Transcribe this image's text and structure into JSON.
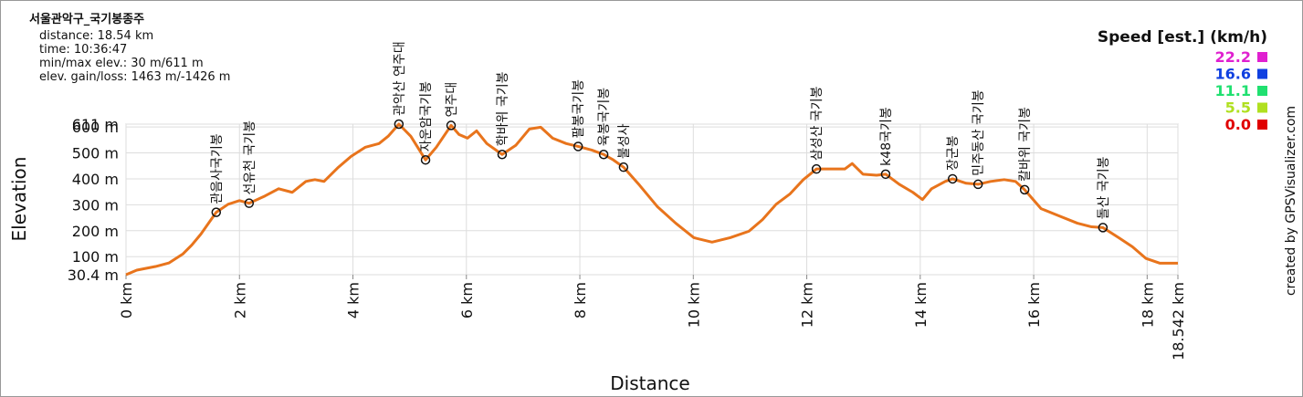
{
  "chart_data": {
    "type": "line",
    "title": "서울관악구_국기봉종주",
    "stats": [
      "distance: 18.54 km",
      "time: 10:36:47",
      "min/max elev.: 30 m/611 m",
      "elev. gain/loss: 1463 m/-1426 m"
    ],
    "x_label": "Distance",
    "y_label": "Elevation",
    "x": [
      0,
      0.19,
      0.52,
      0.76,
      1.0,
      1.16,
      1.32,
      1.59,
      1.8,
      2.0,
      2.17,
      2.45,
      2.69,
      2.93,
      3.17,
      3.33,
      3.49,
      3.73,
      3.97,
      4.22,
      4.46,
      4.62,
      4.81,
      5.02,
      5.28,
      5.47,
      5.73,
      5.87,
      6.02,
      6.18,
      6.36,
      6.63,
      6.87,
      7.11,
      7.31,
      7.52,
      7.76,
      7.97,
      8.21,
      8.42,
      8.59,
      8.77,
      9.05,
      9.37,
      9.69,
      10.01,
      10.33,
      10.65,
      10.98,
      11.22,
      11.46,
      11.7,
      11.94,
      12.17,
      12.43,
      12.67,
      12.8,
      12.99,
      13.23,
      13.39,
      13.63,
      13.87,
      14.04,
      14.2,
      14.44,
      14.57,
      14.81,
      15.02,
      15.24,
      15.48,
      15.68,
      15.84,
      16.13,
      16.45,
      16.77,
      17.02,
      17.22,
      17.5,
      17.74,
      17.98,
      18.22,
      18.542
    ],
    "series": [
      {
        "color": "#e8741c",
        "values": [
          30.4,
          48,
          62,
          76,
          110,
          145,
          187,
          271,
          302,
          316,
          306,
          334,
          362,
          348,
          390,
          397,
          390,
          442,
          487,
          522,
          536,
          564,
          611,
          564,
          473,
          522,
          606,
          571,
          557,
          585,
          536,
          494,
          529,
          592,
          599,
          557,
          536,
          525,
          511,
          494,
          473,
          445,
          376,
          292,
          229,
          173,
          156,
          173,
          198,
          243,
          302,
          341,
          397,
          438,
          438,
          438,
          459,
          418,
          414,
          418,
          379,
          348,
          320,
          362,
          390,
          400,
          383,
          379,
          390,
          397,
          390,
          358,
          285,
          257,
          229,
          215,
          212,
          173,
          138,
          93,
          75,
          75
        ]
      }
    ],
    "waypoints": [
      {
        "name": "관음사국기봉",
        "x": 1.59,
        "y": 271
      },
      {
        "name": "선유천 국기봉",
        "x": 2.17,
        "y": 306
      },
      {
        "name": "관악산 연주대",
        "x": 4.81,
        "y": 611
      },
      {
        "name": "자운암국기봉",
        "x": 5.28,
        "y": 473
      },
      {
        "name": "연주대",
        "x": 5.73,
        "y": 606
      },
      {
        "name": "학바위 국기봉",
        "x": 6.63,
        "y": 494
      },
      {
        "name": "팔봉국기봉",
        "x": 7.97,
        "y": 525
      },
      {
        "name": "육봉국기봉",
        "x": 8.42,
        "y": 494
      },
      {
        "name": "불성사",
        "x": 8.77,
        "y": 445
      },
      {
        "name": "삼성산 국기봉",
        "x": 12.17,
        "y": 438
      },
      {
        "name": "k48국기봉",
        "x": 13.39,
        "y": 418
      },
      {
        "name": "장군봉",
        "x": 14.57,
        "y": 400
      },
      {
        "name": "민주동산 국기봉",
        "x": 15.02,
        "y": 379
      },
      {
        "name": "칼바위 국기봉",
        "x": 15.84,
        "y": 358
      },
      {
        "name": "돌산 국기봉",
        "x": 17.22,
        "y": 212
      }
    ],
    "xlim": [
      0,
      18.542
    ],
    "ylim": [
      30.4,
      611
    ],
    "xticks": [
      {
        "value": 0,
        "label": "0 km"
      },
      {
        "value": 2,
        "label": "2 km"
      },
      {
        "value": 4,
        "label": "4 km"
      },
      {
        "value": 6,
        "label": "6 km"
      },
      {
        "value": 8,
        "label": "8 km"
      },
      {
        "value": 10,
        "label": "10 km"
      },
      {
        "value": 12,
        "label": "12 km"
      },
      {
        "value": 14,
        "label": "14 km"
      },
      {
        "value": 16,
        "label": "16 km"
      },
      {
        "value": 18,
        "label": "18 km"
      },
      {
        "value": 18.542,
        "label": "18.542 km"
      }
    ],
    "yticks": [
      {
        "value": 30.4,
        "label": "30.4 m"
      },
      {
        "value": 100,
        "label": "100 m"
      },
      {
        "value": 200,
        "label": "200 m"
      },
      {
        "value": 300,
        "label": "300 m"
      },
      {
        "value": 400,
        "label": "400 m"
      },
      {
        "value": 500,
        "label": "500 m"
      },
      {
        "value": 600,
        "label": "600 m"
      },
      {
        "value": 611,
        "label": "611 m"
      }
    ],
    "grid": true,
    "legend": {
      "title": "Speed [est.] (km/h)",
      "items": [
        {
          "label": "22.2",
          "color": "#e020d0"
        },
        {
          "label": "16.6",
          "color": "#1040e0"
        },
        {
          "label": "11.1",
          "color": "#20e070"
        },
        {
          "label": "5.5",
          "color": "#b0e020"
        },
        {
          "label": "0.0",
          "color": "#e00000"
        }
      ]
    },
    "credit": "created by GPSVisualizer.com"
  }
}
